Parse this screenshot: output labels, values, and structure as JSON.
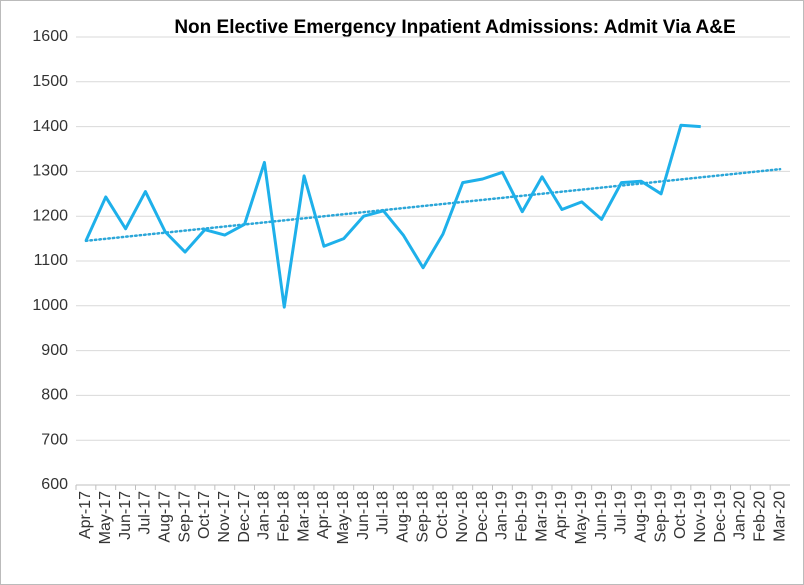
{
  "chart_data": {
    "type": "line",
    "title": "Non Elective Emergency Inpatient Admissions: Admit Via A&E",
    "categories": [
      "Apr-17",
      "May-17",
      "Jun-17",
      "Jul-17",
      "Aug-17",
      "Sep-17",
      "Oct-17",
      "Nov-17",
      "Dec-17",
      "Jan-18",
      "Feb-18",
      "Mar-18",
      "Apr-18",
      "May-18",
      "Jun-18",
      "Jul-18",
      "Aug-18",
      "Sep-18",
      "Oct-18",
      "Nov-18",
      "Dec-18",
      "Jan-19",
      "Feb-19",
      "Mar-19",
      "Apr-19",
      "May-19",
      "Jun-19",
      "Jul-19",
      "Aug-19",
      "Sep-19",
      "Oct-19",
      "Nov-19",
      "Dec-19",
      "Jan-20",
      "Feb-20",
      "Mar-20"
    ],
    "values": [
      1145,
      1243,
      1172,
      1255,
      1165,
      1120,
      1170,
      1158,
      1182,
      1320,
      997,
      1290,
      1133,
      1150,
      1200,
      1212,
      1158,
      1085,
      1160,
      1275,
      1283,
      1298,
      1210,
      1288,
      1215,
      1232,
      1193,
      1275,
      1278,
      1250,
      1403,
      1400,
      null,
      null,
      null,
      null
    ],
    "color": "#1eb0ea",
    "trendline": {
      "values": [
        1145,
        1305
      ],
      "color": "#2ba6d8"
    },
    "ylim": [
      600,
      1600
    ],
    "yticks": [
      600,
      700,
      800,
      900,
      1000,
      1100,
      1200,
      1300,
      1400,
      1500,
      1600
    ],
    "grid": true
  }
}
